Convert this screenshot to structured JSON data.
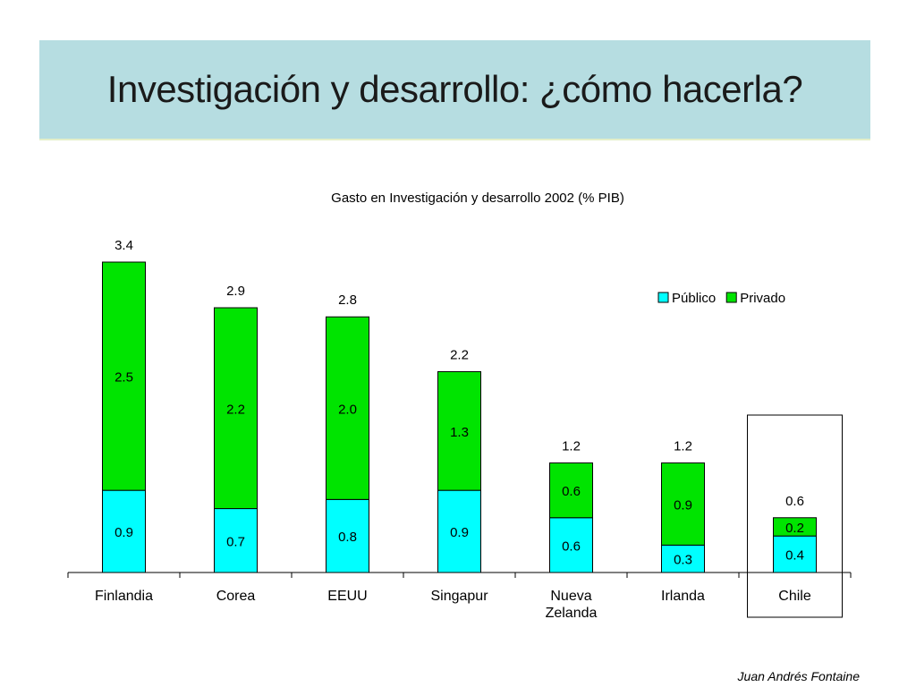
{
  "slide": {
    "title": "Investigación y desarrollo: ¿cómo hacerla?",
    "footer": "Juan Andrés Fontaine"
  },
  "colors": {
    "title_band": "#b6dde1",
    "publico": "#00ffff",
    "privado": "#00e400"
  },
  "chart_data": {
    "type": "bar",
    "stacked": true,
    "title": "Gasto en Investigación y desarrollo 2002 (% PIB)",
    "categories": [
      [
        "Finlandia"
      ],
      [
        "Corea"
      ],
      [
        "EEUU"
      ],
      [
        "Singapur"
      ],
      [
        "Nueva",
        "Zelanda"
      ],
      [
        "Irlanda"
      ],
      [
        "Chile"
      ]
    ],
    "series": [
      {
        "name": "Público",
        "color": "#00ffff",
        "values": [
          0.9,
          0.7,
          0.8,
          0.9,
          0.6,
          0.3,
          0.4
        ],
        "labels": [
          "0.9",
          "0.7",
          "0.8",
          "0.9",
          "0.6",
          "0.3",
          "0.4"
        ]
      },
      {
        "name": "Privado",
        "color": "#00e400",
        "values": [
          2.5,
          2.2,
          2.0,
          1.3,
          0.6,
          0.9,
          0.2
        ],
        "labels": [
          "2.5",
          "2.2",
          "2.0",
          "1.3",
          "0.6",
          "0.9",
          "0.2"
        ]
      }
    ],
    "totals": [
      3.4,
      2.9,
      2.8,
      2.2,
      1.2,
      1.2,
      0.6
    ],
    "total_labels": [
      "3.4",
      "2.9",
      "2.8",
      "2.2",
      "1.2",
      "1.2",
      "0.6"
    ],
    "ylim": [
      0,
      3.4
    ],
    "legend": "top-right",
    "highlighted_category": "Chile",
    "grid": false
  }
}
